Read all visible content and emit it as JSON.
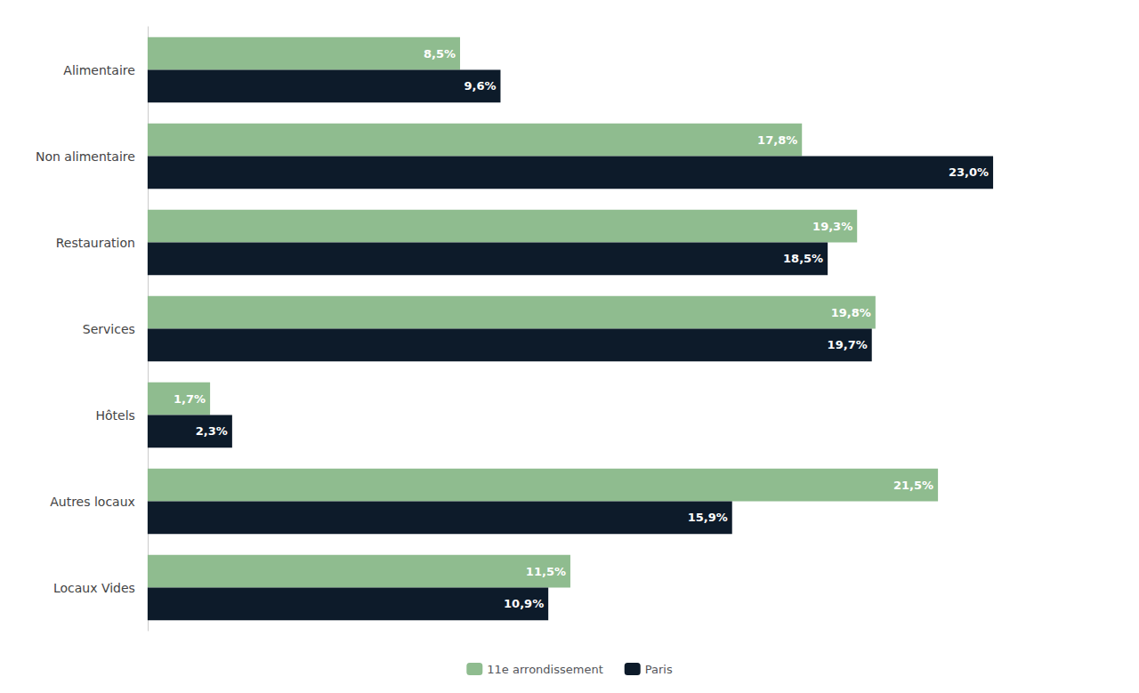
{
  "chart_data": {
    "type": "bar",
    "orientation": "horizontal",
    "categories": [
      "Alimentaire",
      "Non alimentaire",
      "Restauration",
      "Services",
      "Hôtels",
      "Autres locaux",
      "Locaux Vides"
    ],
    "series": [
      {
        "name": "11e arrondissement",
        "color": "#8fbc8f",
        "values": [
          8.5,
          17.8,
          19.3,
          19.8,
          1.7,
          21.5,
          11.5
        ],
        "value_labels": [
          "8,5%",
          "17,8%",
          "19,3%",
          "19,8%",
          "1,7%",
          "21,5%",
          "11,5%"
        ]
      },
      {
        "name": "Paris",
        "color": "#0d1b2a",
        "values": [
          9.6,
          23.0,
          18.5,
          19.7,
          2.3,
          15.9,
          10.9
        ],
        "value_labels": [
          "9,6%",
          "23,0%",
          "18,5%",
          "19,7%",
          "2,3%",
          "15,9%",
          "10,9%"
        ]
      }
    ],
    "xlim": [
      0,
      26
    ],
    "data_labels": true,
    "tick_labels": "y",
    "grid": false,
    "legend": "bottom"
  }
}
